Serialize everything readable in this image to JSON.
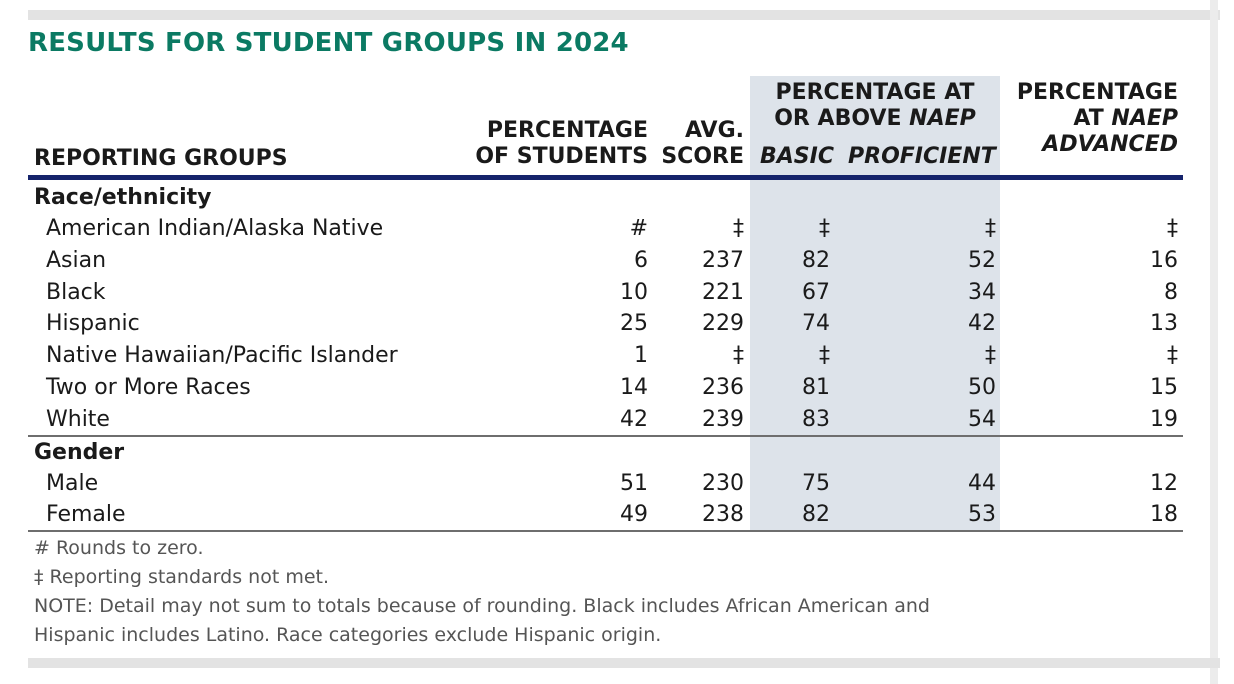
{
  "title": "RESULTS FOR STUDENT GROUPS IN 2024",
  "headers": {
    "groups": "REPORTING GROUPS",
    "pct_line1": "PERCENTAGE",
    "pct_line2": "OF STUDENTS",
    "avg_line1": "AVG.",
    "avg_line2": "SCORE",
    "at_above_line1": "PERCENTAGE AT",
    "at_above_line2_prefix": "OR ABOVE ",
    "at_above_line2_italic": "NAEP",
    "basic": "BASIC",
    "proficient": "PROFICIENT",
    "adv_line1": "PERCENTAGE",
    "adv_line2_prefix": "AT ",
    "adv_line2_italic": "NAEP",
    "advanced": "ADVANCED"
  },
  "sections": [
    {
      "name": "Race/ethnicity",
      "rows": [
        {
          "label": "American Indian/Alaska Native",
          "pct": "#",
          "avg": "‡",
          "basic": "‡",
          "proficient": "‡",
          "advanced": "‡"
        },
        {
          "label": "Asian",
          "pct": "6",
          "avg": "237",
          "basic": "82",
          "proficient": "52",
          "advanced": "16"
        },
        {
          "label": "Black",
          "pct": "10",
          "avg": "221",
          "basic": "67",
          "proficient": "34",
          "advanced": "8"
        },
        {
          "label": "Hispanic",
          "pct": "25",
          "avg": "229",
          "basic": "74",
          "proficient": "42",
          "advanced": "13"
        },
        {
          "label": "Native Hawaiian/Pacific Islander",
          "pct": "1",
          "avg": "‡",
          "basic": "‡",
          "proficient": "‡",
          "advanced": "‡"
        },
        {
          "label": "Two or More Races",
          "pct": "14",
          "avg": "236",
          "basic": "81",
          "proficient": "50",
          "advanced": "15"
        },
        {
          "label": "White",
          "pct": "42",
          "avg": "239",
          "basic": "83",
          "proficient": "54",
          "advanced": "19"
        }
      ]
    },
    {
      "name": "Gender",
      "rows": [
        {
          "label": "Male",
          "pct": "51",
          "avg": "230",
          "basic": "75",
          "proficient": "44",
          "advanced": "12"
        },
        {
          "label": "Female",
          "pct": "49",
          "avg": "238",
          "basic": "82",
          "proficient": "53",
          "advanced": "18"
        }
      ]
    }
  ],
  "notes": [
    "# Rounds to zero.",
    "‡ Reporting standards not met.",
    "NOTE:  Detail may not sum to totals because of rounding. Black includes African American and",
    "Hispanic includes Latino. Race categories exclude Hispanic origin."
  ]
}
